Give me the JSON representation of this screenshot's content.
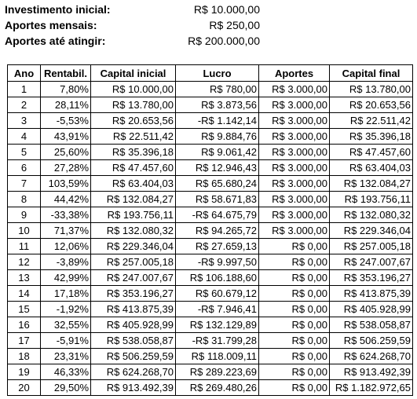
{
  "summary": [
    {
      "label": "Investimento inicial:",
      "value": "R$ 10.000,00"
    },
    {
      "label": "Aportes mensais:",
      "value": "R$ 250,00"
    },
    {
      "label": "Aportes até atingir:",
      "value": "R$ 200.000,00"
    }
  ],
  "table": {
    "headers": [
      "Ano",
      "Rentabil.",
      "Capital inicial",
      "Lucro",
      "Aportes",
      "Capital final"
    ],
    "rows": [
      [
        "1",
        "7,80%",
        "R$ 10.000,00",
        "R$ 780,00",
        "R$ 3.000,00",
        "R$ 13.780,00"
      ],
      [
        "2",
        "28,11%",
        "R$ 13.780,00",
        "R$ 3.873,56",
        "R$ 3.000,00",
        "R$ 20.653,56"
      ],
      [
        "3",
        "-5,53%",
        "R$ 20.653,56",
        "-R$ 1.142,14",
        "R$ 3.000,00",
        "R$ 22.511,42"
      ],
      [
        "4",
        "43,91%",
        "R$ 22.511,42",
        "R$ 9.884,76",
        "R$ 3.000,00",
        "R$ 35.396,18"
      ],
      [
        "5",
        "25,60%",
        "R$ 35.396,18",
        "R$ 9.061,42",
        "R$ 3.000,00",
        "R$ 47.457,60"
      ],
      [
        "6",
        "27,28%",
        "R$ 47.457,60",
        "R$ 12.946,43",
        "R$ 3.000,00",
        "R$ 63.404,03"
      ],
      [
        "7",
        "103,59%",
        "R$ 63.404,03",
        "R$ 65.680,24",
        "R$ 3.000,00",
        "R$ 132.084,27"
      ],
      [
        "8",
        "44,42%",
        "R$ 132.084,27",
        "R$ 58.671,83",
        "R$ 3.000,00",
        "R$ 193.756,11"
      ],
      [
        "9",
        "-33,38%",
        "R$ 193.756,11",
        "-R$ 64.675,79",
        "R$ 3.000,00",
        "R$ 132.080,32"
      ],
      [
        "10",
        "71,37%",
        "R$ 132.080,32",
        "R$ 94.265,72",
        "R$ 3.000,00",
        "R$ 229.346,04"
      ],
      [
        "11",
        "12,06%",
        "R$ 229.346,04",
        "R$ 27.659,13",
        "R$ 0,00",
        "R$ 257.005,18"
      ],
      [
        "12",
        "-3,89%",
        "R$ 257.005,18",
        "-R$ 9.997,50",
        "R$ 0,00",
        "R$ 247.007,67"
      ],
      [
        "13",
        "42,99%",
        "R$ 247.007,67",
        "R$ 106.188,60",
        "R$ 0,00",
        "R$ 353.196,27"
      ],
      [
        "14",
        "17,18%",
        "R$ 353.196,27",
        "R$ 60.679,12",
        "R$ 0,00",
        "R$ 413.875,39"
      ],
      [
        "15",
        "-1,92%",
        "R$ 413.875,39",
        "-R$ 7.946,41",
        "R$ 0,00",
        "R$ 405.928,99"
      ],
      [
        "16",
        "32,55%",
        "R$ 405.928,99",
        "R$ 132.129,89",
        "R$ 0,00",
        "R$ 538.058,87"
      ],
      [
        "17",
        "-5,91%",
        "R$ 538.058,87",
        "-R$ 31.799,28",
        "R$ 0,00",
        "R$ 506.259,59"
      ],
      [
        "18",
        "23,31%",
        "R$ 506.259,59",
        "R$ 118.009,11",
        "R$ 0,00",
        "R$ 624.268,70"
      ],
      [
        "19",
        "46,33%",
        "R$ 624.268,70",
        "R$ 289.223,69",
        "R$ 0,00",
        "R$ 913.492,39"
      ],
      [
        "20",
        "29,50%",
        "R$ 913.492,39",
        "R$ 269.480,26",
        "R$ 0,00",
        "R$ 1.182.972,65"
      ]
    ]
  }
}
